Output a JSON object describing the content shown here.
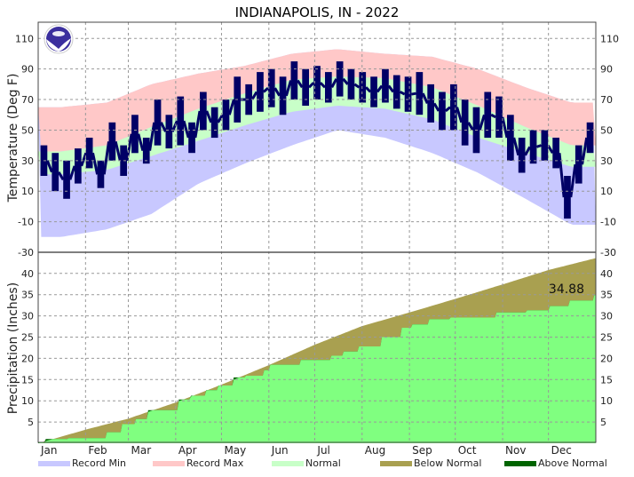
{
  "chart_data": [
    {
      "type": "area",
      "panel": "temperature",
      "title": "INDIANAPOLIS, IN - 2022",
      "ylabel": "Temperature (Deg F)",
      "ylim": [
        -30,
        120
      ],
      "yticks": [
        110,
        90,
        70,
        50,
        30,
        10,
        -10,
        -30
      ],
      "grid": true,
      "x_tick_labels": [
        "Jan",
        "Feb",
        "Mar",
        "Apr",
        "May",
        "Jun",
        "Jul",
        "Aug",
        "Sep",
        "Oct",
        "Nov",
        "Dec"
      ],
      "bands_by_month_mid": {
        "record_max": [
          65,
          68,
          80,
          87,
          92,
          100,
          103,
          100,
          98,
          90,
          78,
          68
        ],
        "normal_high": [
          36,
          40,
          52,
          64,
          74,
          83,
          85,
          84,
          78,
          66,
          52,
          40
        ],
        "normal_low": [
          21,
          24,
          33,
          43,
          53,
          62,
          66,
          64,
          57,
          45,
          35,
          26
        ],
        "record_min": [
          -20,
          -15,
          -5,
          15,
          28,
          40,
          50,
          45,
          35,
          22,
          5,
          -12
        ]
      },
      "observed_weekly": {
        "high": [
          40,
          35,
          30,
          38,
          45,
          30,
          55,
          40,
          60,
          45,
          70,
          60,
          72,
          55,
          75,
          65,
          70,
          85,
          80,
          88,
          90,
          85,
          95,
          90,
          92,
          88,
          95,
          90,
          88,
          85,
          90,
          86,
          85,
          88,
          80,
          75,
          80,
          70,
          65,
          75,
          72,
          60,
          45,
          50,
          50,
          45,
          20,
          40,
          55
        ],
        "low": [
          20,
          10,
          5,
          15,
          25,
          12,
          30,
          20,
          35,
          28,
          40,
          38,
          40,
          35,
          50,
          45,
          50,
          55,
          60,
          62,
          65,
          60,
          70,
          66,
          70,
          68,
          72,
          70,
          68,
          65,
          68,
          64,
          62,
          60,
          55,
          50,
          50,
          40,
          35,
          45,
          45,
          30,
          22,
          28,
          30,
          25,
          -8,
          15,
          35
        ]
      }
    },
    {
      "type": "area",
      "panel": "precipitation",
      "ylabel": "Precipitation (Inches)",
      "ylim": [
        0,
        44
      ],
      "yticks": [
        40,
        35,
        30,
        25,
        20,
        15,
        10,
        5
      ],
      "grid": true,
      "annotation": "34.88",
      "normal_cumulative": {
        "day": [
          0,
          31,
          59,
          90,
          120,
          151,
          181,
          212,
          243,
          273,
          304,
          334,
          365
        ],
        "inches": [
          0,
          3.2,
          5.8,
          9.6,
          13.8,
          18.4,
          23.2,
          27.6,
          30.8,
          34.0,
          37.4,
          40.8,
          43.6
        ]
      },
      "observed_cumulative_steps": {
        "day": [
          0,
          5,
          20,
          45,
          55,
          64,
          72,
          92,
          100,
          110,
          118,
          128,
          136,
          148,
          152,
          172,
          192,
          200,
          210,
          225,
          238,
          245,
          256,
          270,
          300,
          320,
          335,
          348,
          364
        ],
        "inches": [
          0.3,
          1.0,
          1.2,
          2.6,
          4.5,
          5.7,
          7.8,
          10.3,
          11.2,
          12.5,
          13.6,
          15.5,
          15.9,
          17.2,
          18.5,
          19.6,
          20.6,
          21.6,
          22.8,
          25.0,
          27.2,
          28.0,
          29.2,
          29.6,
          30.8,
          31.3,
          32.3,
          33.6,
          34.88
        ]
      }
    }
  ],
  "legend": [
    {
      "label": "Record Min",
      "color": "#c8c8ff"
    },
    {
      "label": "Record Max",
      "color": "#ffc8c8"
    },
    {
      "label": "Normal",
      "color": "#c8ffc8"
    },
    {
      "label": "Below Normal",
      "color": "#a9a050"
    },
    {
      "label": "Above Normal",
      "color": "#006400"
    }
  ],
  "colors": {
    "observed": "#000066",
    "precip_observed": "#80ff80",
    "below_normal": "#a9a050",
    "above_normal": "#006400"
  },
  "logo": {
    "text": "NOAA"
  }
}
